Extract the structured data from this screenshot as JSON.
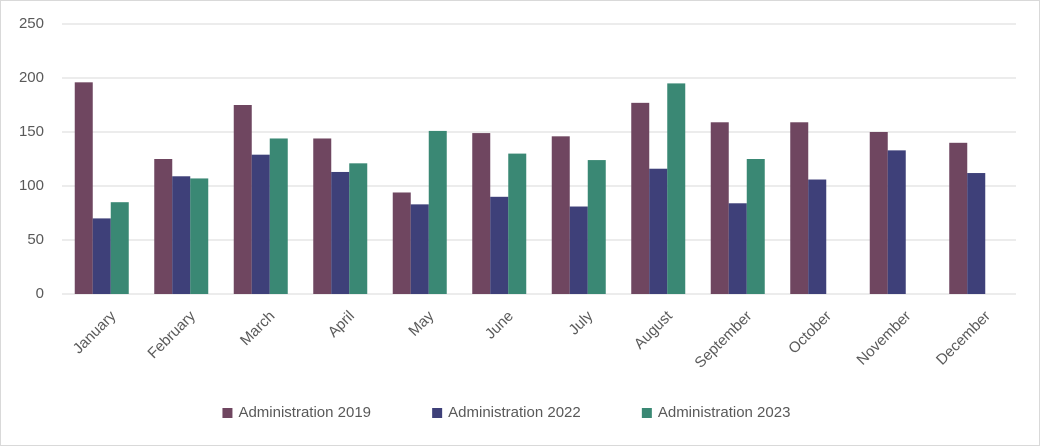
{
  "chart_data": {
    "type": "bar",
    "categories": [
      "January",
      "February",
      "March",
      "April",
      "May",
      "June",
      "July",
      "August",
      "September",
      "October",
      "November",
      "December"
    ],
    "series": [
      {
        "name": "Administration 2019",
        "color": "#6f4660",
        "values": [
          196,
          125,
          175,
          144,
          94,
          149,
          146,
          177,
          159,
          159,
          150,
          140
        ]
      },
      {
        "name": "Administration 2022",
        "color": "#3e4079",
        "values": [
          70,
          109,
          129,
          113,
          83,
          90,
          81,
          116,
          84,
          106,
          133,
          112
        ]
      },
      {
        "name": "Administration 2023",
        "color": "#3a8874",
        "values": [
          85,
          107,
          144,
          121,
          151,
          130,
          124,
          195,
          125,
          null,
          null,
          null
        ]
      }
    ],
    "ylim": [
      0,
      250
    ],
    "yticks": [
      0,
      50,
      100,
      150,
      200,
      250
    ],
    "grid": true,
    "legend": "bottom"
  }
}
